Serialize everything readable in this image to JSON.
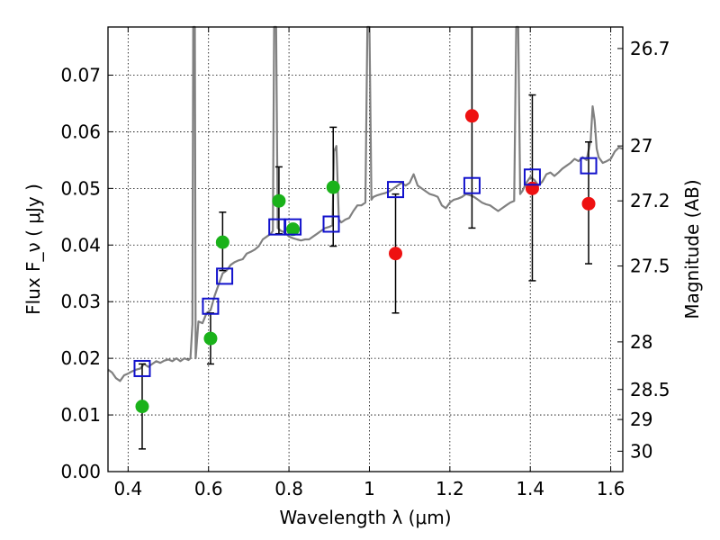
{
  "chart_data": {
    "type": "scatter",
    "xlabel": "Wavelength  λ (μm)",
    "ylabel": "Flux  F_ν  ( μJy )",
    "ylabel_right": "Magnitude (AB)",
    "xlim": [
      0.35,
      1.63
    ],
    "ylim": [
      0.0,
      0.0785
    ],
    "grid": true,
    "x_ticks": [
      0.4,
      0.6,
      0.8,
      1.0,
      1.2,
      1.4,
      1.6
    ],
    "x_tick_labels": [
      "0.4",
      "0.6",
      "0.8",
      "1",
      "1.2",
      "1.4",
      "1.6"
    ],
    "y_ticks": [
      0.0,
      0.01,
      0.02,
      0.03,
      0.04,
      0.05,
      0.06,
      0.07
    ],
    "y_tick_labels": [
      "0.00",
      "0.01",
      "0.02",
      "0.03",
      "0.04",
      "0.05",
      "0.06",
      "0.07"
    ],
    "right_ticks": [
      {
        "flux": 0.0747,
        "label": "26.7"
      },
      {
        "flux": 0.0575,
        "label": "27"
      },
      {
        "flux": 0.0478,
        "label": "27.2"
      },
      {
        "flux": 0.0363,
        "label": "27.5"
      },
      {
        "flux": 0.0229,
        "label": "28"
      },
      {
        "flux": 0.0145,
        "label": "28.5"
      },
      {
        "flux": 0.0092,
        "label": "29"
      },
      {
        "flux": 0.0036,
        "label": "30"
      }
    ],
    "series": [
      {
        "kind": "spectrum",
        "color": "#808080",
        "points": [
          [
            0.35,
            0.018
          ],
          [
            0.36,
            0.0175
          ],
          [
            0.37,
            0.0165
          ],
          [
            0.38,
            0.016
          ],
          [
            0.39,
            0.017
          ],
          [
            0.4,
            0.0173
          ],
          [
            0.41,
            0.0177
          ],
          [
            0.42,
            0.018
          ],
          [
            0.43,
            0.0182
          ],
          [
            0.44,
            0.019
          ],
          [
            0.45,
            0.0185
          ],
          [
            0.46,
            0.019
          ],
          [
            0.47,
            0.0195
          ],
          [
            0.48,
            0.0192
          ],
          [
            0.49,
            0.0196
          ],
          [
            0.5,
            0.0198
          ],
          [
            0.51,
            0.0195
          ],
          [
            0.52,
            0.02
          ],
          [
            0.53,
            0.0195
          ],
          [
            0.54,
            0.02
          ],
          [
            0.55,
            0.0197
          ],
          [
            0.555,
            0.02
          ],
          [
            0.56,
            0.026
          ],
          [
            0.562,
            0.0785
          ],
          [
            0.566,
            0.0785
          ],
          [
            0.568,
            0.02
          ],
          [
            0.575,
            0.0265
          ],
          [
            0.585,
            0.0262
          ],
          [
            0.595,
            0.028
          ],
          [
            0.605,
            0.0285
          ],
          [
            0.615,
            0.031
          ],
          [
            0.625,
            0.033
          ],
          [
            0.635,
            0.035
          ],
          [
            0.645,
            0.0355
          ],
          [
            0.655,
            0.0365
          ],
          [
            0.665,
            0.037
          ],
          [
            0.675,
            0.0373
          ],
          [
            0.685,
            0.0375
          ],
          [
            0.695,
            0.0385
          ],
          [
            0.705,
            0.0388
          ],
          [
            0.715,
            0.0392
          ],
          [
            0.725,
            0.0398
          ],
          [
            0.735,
            0.041
          ],
          [
            0.745,
            0.0415
          ],
          [
            0.755,
            0.042
          ],
          [
            0.76,
            0.0425
          ],
          [
            0.763,
            0.0785
          ],
          [
            0.768,
            0.0785
          ],
          [
            0.772,
            0.043
          ],
          [
            0.78,
            0.0425
          ],
          [
            0.79,
            0.0422
          ],
          [
            0.8,
            0.0415
          ],
          [
            0.81,
            0.0412
          ],
          [
            0.82,
            0.041
          ],
          [
            0.83,
            0.0408
          ],
          [
            0.84,
            0.041
          ],
          [
            0.85,
            0.041
          ],
          [
            0.86,
            0.0415
          ],
          [
            0.87,
            0.042
          ],
          [
            0.88,
            0.0425
          ],
          [
            0.89,
            0.043
          ],
          [
            0.9,
            0.0432
          ],
          [
            0.908,
            0.0435
          ],
          [
            0.912,
            0.0565
          ],
          [
            0.918,
            0.0575
          ],
          [
            0.924,
            0.0445
          ],
          [
            0.93,
            0.044
          ],
          [
            0.94,
            0.0445
          ],
          [
            0.95,
            0.0448
          ],
          [
            0.96,
            0.046
          ],
          [
            0.97,
            0.047
          ],
          [
            0.98,
            0.047
          ],
          [
            0.99,
            0.0475
          ],
          [
            0.995,
            0.0785
          ],
          [
            1.0,
            0.0785
          ],
          [
            1.005,
            0.048
          ],
          [
            1.01,
            0.0485
          ],
          [
            1.02,
            0.0488
          ],
          [
            1.03,
            0.049
          ],
          [
            1.04,
            0.0492
          ],
          [
            1.05,
            0.0495
          ],
          [
            1.06,
            0.05
          ],
          [
            1.07,
            0.0505
          ],
          [
            1.08,
            0.051
          ],
          [
            1.09,
            0.0505
          ],
          [
            1.1,
            0.051
          ],
          [
            1.11,
            0.0525
          ],
          [
            1.12,
            0.0505
          ],
          [
            1.13,
            0.05
          ],
          [
            1.14,
            0.0495
          ],
          [
            1.15,
            0.049
          ],
          [
            1.16,
            0.0488
          ],
          [
            1.17,
            0.0485
          ],
          [
            1.18,
            0.047
          ],
          [
            1.19,
            0.0465
          ],
          [
            1.2,
            0.0475
          ],
          [
            1.21,
            0.048
          ],
          [
            1.22,
            0.0482
          ],
          [
            1.23,
            0.0485
          ],
          [
            1.24,
            0.049
          ],
          [
            1.25,
            0.0488
          ],
          [
            1.26,
            0.0485
          ],
          [
            1.27,
            0.048
          ],
          [
            1.28,
            0.0475
          ],
          [
            1.29,
            0.0472
          ],
          [
            1.3,
            0.047
          ],
          [
            1.31,
            0.0465
          ],
          [
            1.32,
            0.046
          ],
          [
            1.33,
            0.0465
          ],
          [
            1.34,
            0.047
          ],
          [
            1.35,
            0.0475
          ],
          [
            1.36,
            0.0478
          ],
          [
            1.365,
            0.0785
          ],
          [
            1.37,
            0.0785
          ],
          [
            1.375,
            0.049
          ],
          [
            1.38,
            0.0495
          ],
          [
            1.39,
            0.051
          ],
          [
            1.4,
            0.052
          ],
          [
            1.41,
            0.0515
          ],
          [
            1.42,
            0.0505
          ],
          [
            1.43,
            0.0512
          ],
          [
            1.44,
            0.0525
          ],
          [
            1.45,
            0.0528
          ],
          [
            1.46,
            0.0522
          ],
          [
            1.47,
            0.0528
          ],
          [
            1.48,
            0.0535
          ],
          [
            1.49,
            0.054
          ],
          [
            1.5,
            0.0545
          ],
          [
            1.51,
            0.0552
          ],
          [
            1.52,
            0.0548
          ],
          [
            1.53,
            0.0555
          ],
          [
            1.54,
            0.055
          ],
          [
            1.55,
            0.0585
          ],
          [
            1.555,
            0.0645
          ],
          [
            1.56,
            0.062
          ],
          [
            1.565,
            0.057
          ],
          [
            1.57,
            0.0555
          ],
          [
            1.58,
            0.0545
          ],
          [
            1.59,
            0.0548
          ],
          [
            1.6,
            0.0552
          ],
          [
            1.61,
            0.0565
          ],
          [
            1.62,
            0.0572
          ],
          [
            1.63,
            0.057
          ]
        ]
      },
      {
        "kind": "points",
        "marker": "circle",
        "color": "#1ab21a",
        "points": [
          {
            "x": 0.435,
            "y": 0.0115,
            "err": [
              0.004,
              0.019
            ]
          },
          {
            "x": 0.605,
            "y": 0.0235,
            "err": [
              0.019,
              0.028
            ]
          },
          {
            "x": 0.635,
            "y": 0.0405,
            "err": [
              0.0355,
              0.0458
            ]
          },
          {
            "x": 0.775,
            "y": 0.0478,
            "err": [
              0.042,
              0.0538
            ]
          },
          {
            "x": 0.81,
            "y": 0.0428
          },
          {
            "x": 0.91,
            "y": 0.0502,
            "err": [
              0.0398,
              0.0608
            ]
          }
        ]
      },
      {
        "kind": "points",
        "marker": "circle",
        "color": "#ee1111",
        "points": [
          {
            "x": 1.065,
            "y": 0.0385,
            "err": [
              0.028,
              0.049
            ]
          },
          {
            "x": 1.255,
            "y": 0.0628,
            "err": [
              0.043,
              0.0785
            ]
          },
          {
            "x": 1.405,
            "y": 0.05,
            "err": [
              0.0337,
              0.0665
            ]
          },
          {
            "x": 1.545,
            "y": 0.0473,
            "err": [
              0.0367,
              0.0582
            ]
          }
        ]
      },
      {
        "kind": "points",
        "marker": "square",
        "color": "#1111cc",
        "points": [
          {
            "x": 0.435,
            "y": 0.0182
          },
          {
            "x": 0.605,
            "y": 0.0292
          },
          {
            "x": 0.64,
            "y": 0.0345
          },
          {
            "x": 0.77,
            "y": 0.0432
          },
          {
            "x": 0.81,
            "y": 0.0432
          },
          {
            "x": 0.905,
            "y": 0.0437
          },
          {
            "x": 1.065,
            "y": 0.0498
          },
          {
            "x": 1.255,
            "y": 0.0505
          },
          {
            "x": 1.405,
            "y": 0.052
          },
          {
            "x": 1.545,
            "y": 0.054
          }
        ]
      }
    ]
  }
}
